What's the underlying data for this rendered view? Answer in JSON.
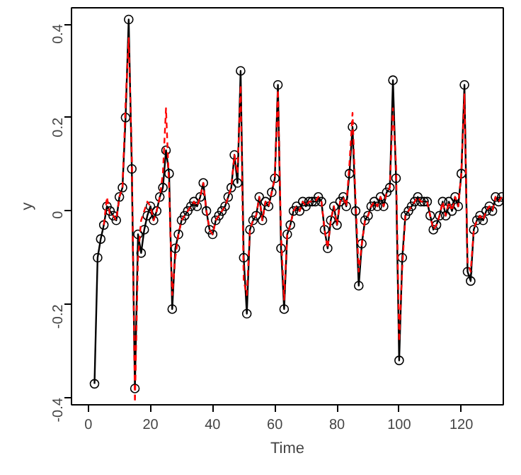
{
  "chart_data": {
    "type": "line",
    "xlabel": "Time",
    "ylabel": "y",
    "xlim": [
      -5.4,
      133.5
    ],
    "ylim": [
      -0.415,
      0.435
    ],
    "xticks": [
      0,
      20,
      40,
      60,
      80,
      100,
      120
    ],
    "yticks": [
      -0.4,
      -0.2,
      0.0,
      0.2,
      0.4
    ],
    "grid": false,
    "series": [
      {
        "color": "#000000",
        "marker": "circle",
        "line_style": "solid",
        "x": [
          2,
          3,
          4,
          5,
          6,
          7,
          8,
          9,
          10,
          11,
          12,
          13,
          14,
          15,
          16,
          17,
          18,
          19,
          20,
          21,
          22,
          23,
          24,
          25,
          26,
          27,
          28,
          29,
          30,
          31,
          32,
          33,
          34,
          35,
          36,
          37,
          38,
          39,
          40,
          41,
          42,
          43,
          44,
          45,
          46,
          47,
          48,
          49,
          50,
          51,
          52,
          53,
          54,
          55,
          56,
          57,
          58,
          59,
          60,
          61,
          62,
          63,
          64,
          65,
          66,
          67,
          68,
          69,
          70,
          71,
          72,
          73,
          74,
          75,
          76,
          77,
          78,
          79,
          80,
          81,
          82,
          83,
          84,
          85,
          86,
          87,
          88,
          89,
          90,
          91,
          92,
          93,
          94,
          95,
          96,
          97,
          98,
          99,
          100,
          101,
          102,
          103,
          104,
          105,
          106,
          107,
          108,
          109,
          110,
          111,
          112,
          113,
          114,
          115,
          116,
          117,
          118,
          119,
          120,
          121,
          122,
          123,
          124,
          125,
          126,
          127,
          128,
          129,
          130,
          131,
          132,
          133
        ],
        "values": [
          -0.37,
          -0.1,
          -0.06,
          -0.03,
          0.01,
          0.0,
          -0.01,
          -0.02,
          0.03,
          0.05,
          0.2,
          0.41,
          0.09,
          -0.38,
          -0.05,
          -0.09,
          -0.04,
          -0.01,
          0.01,
          -0.02,
          0.0,
          0.03,
          0.05,
          0.13,
          0.08,
          -0.21,
          -0.08,
          -0.05,
          -0.02,
          -0.01,
          0.0,
          0.01,
          0.02,
          0.01,
          0.03,
          0.06,
          0.0,
          -0.04,
          -0.05,
          -0.02,
          -0.01,
          0.0,
          0.01,
          0.03,
          0.05,
          0.12,
          0.06,
          0.3,
          -0.1,
          -0.22,
          -0.04,
          -0.02,
          -0.01,
          0.03,
          -0.02,
          0.02,
          0.01,
          0.04,
          0.07,
          0.27,
          -0.08,
          -0.21,
          -0.05,
          -0.03,
          0.0,
          0.01,
          0.0,
          0.02,
          0.01,
          0.02,
          0.02,
          0.02,
          0.03,
          0.02,
          -0.04,
          -0.08,
          -0.02,
          0.01,
          -0.03,
          0.02,
          0.03,
          0.01,
          0.08,
          0.18,
          0.0,
          -0.16,
          -0.07,
          -0.02,
          -0.01,
          0.01,
          0.02,
          0.01,
          0.03,
          0.01,
          0.04,
          0.05,
          0.28,
          0.07,
          -0.32,
          -0.1,
          -0.01,
          0.0,
          0.01,
          0.02,
          0.03,
          0.02,
          0.02,
          0.02,
          -0.01,
          -0.04,
          -0.03,
          -0.01,
          0.02,
          -0.01,
          0.02,
          0.0,
          0.03,
          0.01,
          0.08,
          0.27,
          -0.13,
          -0.15,
          -0.04,
          -0.02,
          -0.01,
          -0.02,
          0.0,
          0.01,
          0.0,
          0.03,
          0.02,
          0.03
        ]
      },
      {
        "color": "#ff0000",
        "marker": "none",
        "line_style": "dashed",
        "x": [
          5,
          6,
          7,
          8,
          9,
          10,
          11,
          12,
          13,
          14,
          15,
          16,
          17,
          18,
          19,
          20,
          21,
          22,
          23,
          24,
          25,
          26,
          27,
          28,
          29,
          30,
          31,
          32,
          33,
          34,
          35,
          36,
          37,
          38,
          39,
          40,
          41,
          42,
          43,
          44,
          45,
          46,
          47,
          48,
          49,
          50,
          51,
          52,
          53,
          54,
          55,
          56,
          57,
          58,
          59,
          60,
          61,
          62,
          63,
          64,
          65,
          66,
          67,
          68,
          69,
          70,
          71,
          72,
          73,
          74,
          75,
          76,
          77,
          78,
          79,
          80,
          81,
          82,
          83,
          84,
          85,
          86,
          87,
          88,
          89,
          90,
          91,
          92,
          93,
          94,
          95,
          96,
          97,
          98,
          99,
          100,
          101,
          102,
          103,
          104,
          105,
          106,
          107,
          108,
          109,
          110,
          111,
          112,
          113,
          114,
          115,
          116,
          117,
          118,
          119,
          120,
          121,
          122,
          123,
          124,
          125,
          126,
          127,
          128,
          129,
          130,
          131,
          132,
          133
        ],
        "values": [
          -0.03,
          0.03,
          -0.01,
          -0.01,
          -0.02,
          0.03,
          0.05,
          0.23,
          0.37,
          0.12,
          -0.41,
          -0.1,
          -0.02,
          0.0,
          0.02,
          0.01,
          -0.02,
          0.0,
          0.03,
          0.08,
          0.22,
          0.05,
          -0.18,
          -0.1,
          -0.05,
          -0.02,
          -0.01,
          0.0,
          0.01,
          0.02,
          0.01,
          0.03,
          0.06,
          0.0,
          -0.04,
          -0.05,
          -0.02,
          -0.01,
          0.0,
          0.01,
          0.03,
          0.05,
          0.12,
          0.08,
          0.27,
          -0.15,
          -0.18,
          -0.04,
          -0.02,
          -0.01,
          0.03,
          -0.02,
          0.02,
          0.01,
          0.04,
          0.07,
          0.26,
          -0.05,
          -0.19,
          -0.05,
          -0.03,
          0.0,
          0.01,
          0.0,
          0.02,
          0.01,
          0.02,
          0.02,
          0.02,
          0.03,
          0.02,
          -0.04,
          -0.08,
          -0.02,
          0.01,
          -0.03,
          0.02,
          0.03,
          0.01,
          0.1,
          0.21,
          0.02,
          -0.13,
          -0.07,
          -0.02,
          -0.01,
          0.01,
          0.02,
          0.01,
          0.03,
          0.01,
          0.04,
          0.05,
          0.22,
          0.1,
          -0.28,
          -0.12,
          -0.01,
          0.0,
          0.01,
          0.02,
          0.03,
          0.02,
          0.02,
          0.02,
          -0.01,
          -0.04,
          -0.03,
          -0.01,
          0.02,
          -0.01,
          0.02,
          0.0,
          0.03,
          0.01,
          0.08,
          0.25,
          -0.11,
          -0.13,
          -0.04,
          -0.02,
          -0.01,
          -0.02,
          0.0,
          0.01,
          0.0,
          0.03,
          0.02,
          0.03
        ]
      }
    ]
  }
}
